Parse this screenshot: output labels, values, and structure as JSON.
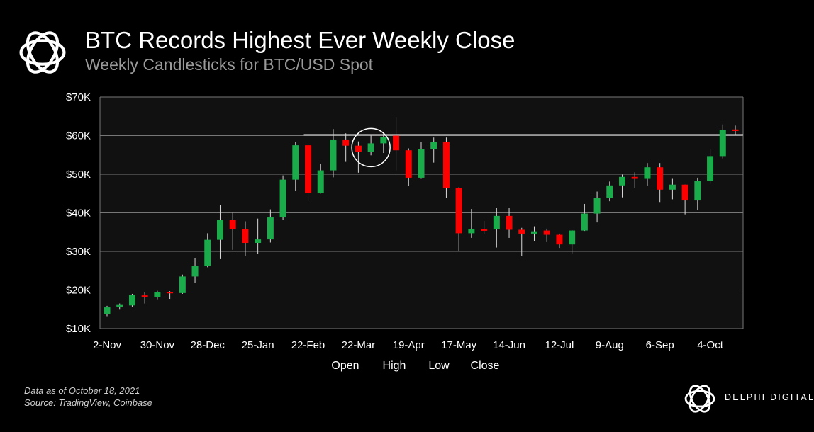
{
  "header": {
    "title": "BTC Records Highest Ever Weekly Close",
    "subtitle": "Weekly Candlesticks for BTC/USD Spot"
  },
  "footer": {
    "note_date": "Data as of October 18, 2021",
    "note_source": "Source: TradingView, Coinbase",
    "brand": "DELPHI DIGITAL"
  },
  "chart_data": {
    "type": "candlestick",
    "title": "BTC Records Highest Ever Weekly Close",
    "subtitle": "Weekly Candlesticks for BTC/USD Spot",
    "ylim": [
      10000,
      70000
    ],
    "yticks": [
      10000,
      20000,
      30000,
      40000,
      50000,
      60000,
      70000
    ],
    "ytick_labels": [
      "$10K",
      "$20K",
      "$30K",
      "$40K",
      "$50K",
      "$60K",
      "$70K"
    ],
    "xtick_labels": [
      "2-Nov",
      "30-Nov",
      "28-Dec",
      "25-Jan",
      "22-Feb",
      "22-Mar",
      "19-Apr",
      "17-May",
      "14-Jun",
      "12-Jul",
      "9-Aug",
      "6-Sep",
      "4-Oct"
    ],
    "xtick_every": 4,
    "legend": [
      "Open",
      "High",
      "Low",
      "Close"
    ],
    "grid": true,
    "colors": {
      "up": "#1aab4b",
      "down": "#ff0000",
      "grid": "#777777",
      "reference": "#cccccc",
      "highlight": "#ffffff"
    },
    "reference_line": {
      "value": 60200,
      "start_index": 16
    },
    "highlight_index": 21,
    "series": [
      {
        "week": "2-Nov",
        "open": 13800,
        "high": 15900,
        "low": 13200,
        "close": 15500
      },
      {
        "week": "9-Nov",
        "open": 15500,
        "high": 16500,
        "low": 14900,
        "close": 16300
      },
      {
        "week": "16-Nov",
        "open": 16000,
        "high": 19000,
        "low": 15700,
        "close": 18700
      },
      {
        "week": "23-Nov",
        "open": 18600,
        "high": 19400,
        "low": 16500,
        "close": 18200
      },
      {
        "week": "30-Nov",
        "open": 18200,
        "high": 19800,
        "low": 17600,
        "close": 19500
      },
      {
        "week": "7-Dec",
        "open": 19500,
        "high": 19700,
        "low": 17700,
        "close": 19200
      },
      {
        "week": "14-Dec",
        "open": 19200,
        "high": 24000,
        "low": 19000,
        "close": 23500
      },
      {
        "week": "21-Dec",
        "open": 23500,
        "high": 28300,
        "low": 21800,
        "close": 26300
      },
      {
        "week": "28-Dec",
        "open": 26200,
        "high": 34700,
        "low": 25900,
        "close": 33000
      },
      {
        "week": "4-Jan",
        "open": 33000,
        "high": 42000,
        "low": 28000,
        "close": 38200
      },
      {
        "week": "11-Jan",
        "open": 38200,
        "high": 40000,
        "low": 30400,
        "close": 35800
      },
      {
        "week": "18-Jan",
        "open": 35800,
        "high": 37800,
        "low": 28900,
        "close": 32200
      },
      {
        "week": "25-Jan",
        "open": 32200,
        "high": 38500,
        "low": 29300,
        "close": 33100
      },
      {
        "week": "1-Feb",
        "open": 33100,
        "high": 40900,
        "low": 32300,
        "close": 38800
      },
      {
        "week": "8-Feb",
        "open": 38800,
        "high": 49700,
        "low": 38100,
        "close": 48600
      },
      {
        "week": "15-Feb",
        "open": 48600,
        "high": 58300,
        "low": 45600,
        "close": 57500
      },
      {
        "week": "22-Feb",
        "open": 57500,
        "high": 57500,
        "low": 43000,
        "close": 45200
      },
      {
        "week": "1-Mar",
        "open": 45200,
        "high": 52600,
        "low": 45000,
        "close": 51000
      },
      {
        "week": "8-Mar",
        "open": 51000,
        "high": 61700,
        "low": 49200,
        "close": 59000
      },
      {
        "week": "15-Mar",
        "open": 59000,
        "high": 60600,
        "low": 53200,
        "close": 57400
      },
      {
        "week": "22-Mar",
        "open": 57400,
        "high": 58500,
        "low": 50400,
        "close": 55800
      },
      {
        "week": "29-Mar",
        "open": 55800,
        "high": 60000,
        "low": 54900,
        "close": 58000
      },
      {
        "week": "5-Apr",
        "open": 58000,
        "high": 61000,
        "low": 55500,
        "close": 59700
      },
      {
        "week": "12-Apr",
        "open": 60000,
        "high": 64800,
        "low": 51000,
        "close": 56200
      },
      {
        "week": "19-Apr",
        "open": 56200,
        "high": 56700,
        "low": 47000,
        "close": 49100
      },
      {
        "week": "26-Apr",
        "open": 49100,
        "high": 58400,
        "low": 48800,
        "close": 56600
      },
      {
        "week": "3-May",
        "open": 56600,
        "high": 59500,
        "low": 53000,
        "close": 58300
      },
      {
        "week": "10-May",
        "open": 58300,
        "high": 59500,
        "low": 43800,
        "close": 46500
      },
      {
        "week": "17-May",
        "open": 46500,
        "high": 46600,
        "low": 30000,
        "close": 34700
      },
      {
        "week": "24-May",
        "open": 34700,
        "high": 41000,
        "low": 33500,
        "close": 35700
      },
      {
        "week": "31-May",
        "open": 35700,
        "high": 37900,
        "low": 34500,
        "close": 35500
      },
      {
        "week": "7-Jun",
        "open": 35700,
        "high": 41300,
        "low": 31000,
        "close": 39200
      },
      {
        "week": "14-Jun",
        "open": 39200,
        "high": 41200,
        "low": 33500,
        "close": 35600
      },
      {
        "week": "21-Jun",
        "open": 35600,
        "high": 36100,
        "low": 28800,
        "close": 34600
      },
      {
        "week": "28-Jun",
        "open": 34600,
        "high": 36500,
        "low": 32700,
        "close": 35200
      },
      {
        "week": "5-Jul",
        "open": 35400,
        "high": 35900,
        "low": 32400,
        "close": 34300
      },
      {
        "week": "12-Jul",
        "open": 34300,
        "high": 34600,
        "low": 30900,
        "close": 31800
      },
      {
        "week": "19-Jul",
        "open": 31800,
        "high": 35500,
        "low": 29300,
        "close": 35400
      },
      {
        "week": "26-Jul",
        "open": 35400,
        "high": 42300,
        "low": 35300,
        "close": 39800
      },
      {
        "week": "2-Aug",
        "open": 39800,
        "high": 45500,
        "low": 37500,
        "close": 43900
      },
      {
        "week": "9-Aug",
        "open": 43900,
        "high": 48100,
        "low": 43000,
        "close": 47100
      },
      {
        "week": "16-Aug",
        "open": 47100,
        "high": 49900,
        "low": 44000,
        "close": 49300
      },
      {
        "week": "23-Aug",
        "open": 49300,
        "high": 50500,
        "low": 46400,
        "close": 48800
      },
      {
        "week": "30-Aug",
        "open": 48800,
        "high": 52900,
        "low": 47000,
        "close": 51800
      },
      {
        "week": "6-Sep",
        "open": 51800,
        "high": 52900,
        "low": 42800,
        "close": 46000
      },
      {
        "week": "13-Sep",
        "open": 46000,
        "high": 48800,
        "low": 43500,
        "close": 47300
      },
      {
        "week": "20-Sep",
        "open": 47300,
        "high": 47300,
        "low": 39600,
        "close": 43200
      },
      {
        "week": "27-Sep",
        "open": 43200,
        "high": 49100,
        "low": 40800,
        "close": 48300
      },
      {
        "week": "4-Oct",
        "open": 48300,
        "high": 56500,
        "low": 47500,
        "close": 54700
      },
      {
        "week": "11-Oct",
        "open": 54700,
        "high": 62900,
        "low": 54100,
        "close": 61500
      },
      {
        "week": "18-Oct",
        "open": 61600,
        "high": 62600,
        "low": 60200,
        "close": 61200
      }
    ]
  }
}
